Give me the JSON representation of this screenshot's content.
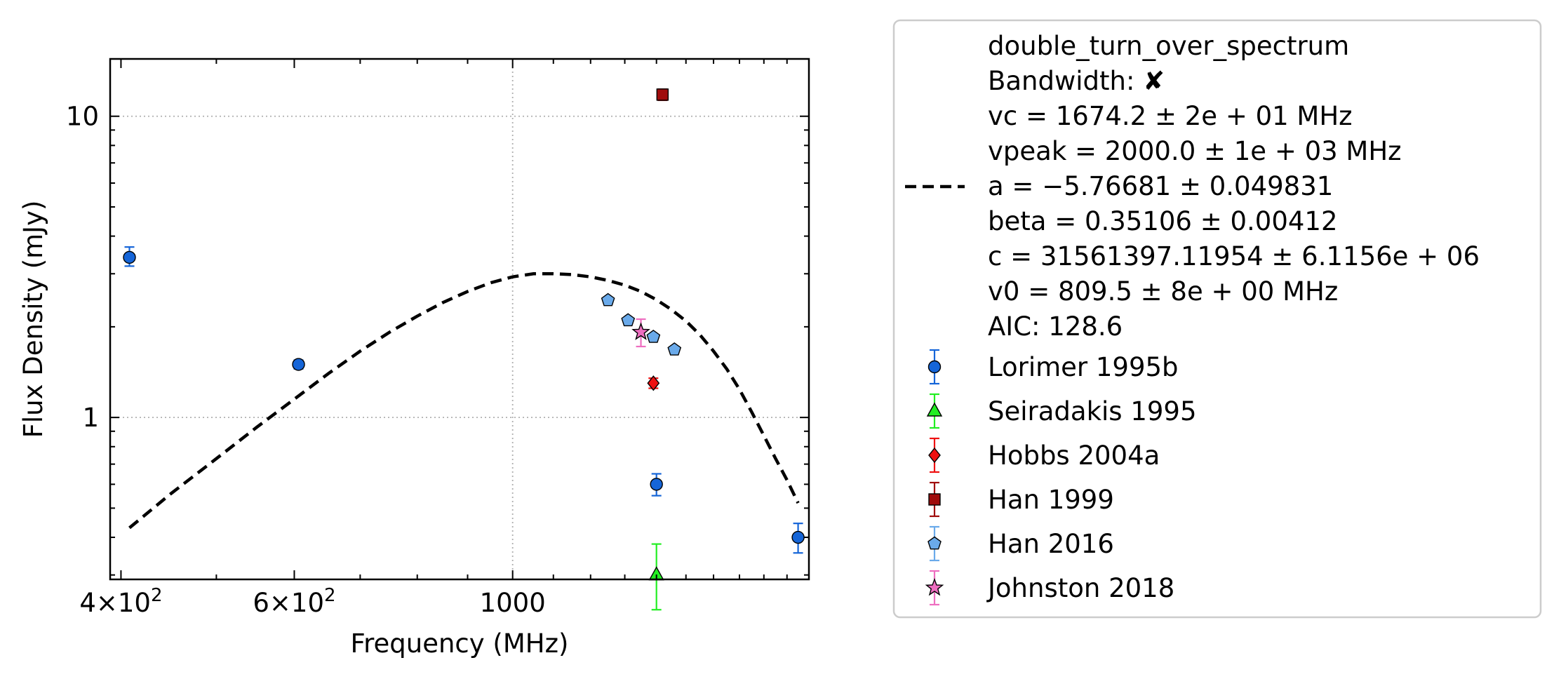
{
  "chart_data": {
    "type": "scatter",
    "title": "",
    "xlabel": "Frequency (MHz)",
    "ylabel": "Flux Density (mJy)",
    "x_scale": "log",
    "y_scale": "log",
    "xlim": [
      390,
      2000
    ],
    "ylim": [
      0.29,
      15.5
    ],
    "grid": true,
    "legend_position": "outside-right",
    "x_ticks": [
      {
        "value": 400,
        "base": "4",
        "exp": "2"
      },
      {
        "value": 600,
        "base": "6",
        "exp": "2"
      },
      {
        "value": 1000,
        "label": "1000"
      }
    ],
    "y_ticks": [
      {
        "value": 1,
        "label": "1"
      },
      {
        "value": 10,
        "label": "10"
      }
    ],
    "fit": {
      "name": "double_turn_over_spectrum",
      "color": "#000000",
      "x_range": [
        408,
        1950
      ],
      "x": [
        408,
        450,
        500,
        550,
        600,
        650,
        700,
        750,
        800,
        850,
        900,
        950,
        1000,
        1050,
        1100,
        1150,
        1200,
        1250,
        1300,
        1350,
        1400,
        1450,
        1500,
        1550,
        1600,
        1650,
        1700,
        1750,
        1800,
        1850,
        1900,
        1950
      ],
      "y": [
        0.43,
        0.56,
        0.73,
        0.93,
        1.15,
        1.4,
        1.66,
        1.92,
        2.17,
        2.41,
        2.62,
        2.8,
        2.93,
        3.0,
        3.0,
        2.98,
        2.93,
        2.85,
        2.75,
        2.62,
        2.46,
        2.28,
        2.09,
        1.88,
        1.66,
        1.45,
        1.24,
        1.04,
        0.87,
        0.73,
        0.62,
        0.52
      ]
    },
    "fit_legend_lines": [
      "double_turn_over_spectrum",
      "Bandwidth: ✘",
      "vc = 1674.2 ± 2e + 01 MHz",
      "vpeak = 2000.0 ± 1e + 03 MHz",
      "a = −5.76681 ± 0.049831",
      "beta = 0.35106 ± 0.00412",
      "c = 31561397.11954 ± 6.1156e + 06",
      "v0 = 809.5 ± 8e + 00 MHz",
      "AIC: 128.6"
    ],
    "series": [
      {
        "name": "Lorimer 1995b",
        "marker": "circle",
        "color": "#1565d8",
        "err_color": "#1565d8",
        "points": [
          {
            "x": 408,
            "y": 3.4,
            "yerr": [
              0.22,
              0.28
            ]
          },
          {
            "x": 606,
            "y": 1.5,
            "yerr": [
              0.05,
              0.05
            ]
          },
          {
            "x": 1400,
            "y": 0.6,
            "yerr": [
              0.05,
              0.05
            ]
          },
          {
            "x": 1950,
            "y": 0.4,
            "yerr": [
              0.045,
              0.045
            ]
          }
        ]
      },
      {
        "name": "Seiradakis 1995",
        "marker": "triangle",
        "color": "#22ee22",
        "err_color": "#22ee22",
        "points": [
          {
            "x": 1400,
            "y": 0.3,
            "yerr": [
              0.07,
              0.08
            ]
          }
        ]
      },
      {
        "name": "Hobbs 2004a",
        "marker": "diamond",
        "color": "#ee1111",
        "err_color": "#ee1111",
        "points": [
          {
            "x": 1390,
            "y": 1.3,
            "yerr": [
              0.05,
              0.05
            ]
          }
        ]
      },
      {
        "name": "Han 1999",
        "marker": "square",
        "color": "#a00c0c",
        "err_color": "#a00c0c",
        "points": [
          {
            "x": 1420,
            "y": 11.8,
            "yerr": [
              0.5,
              0.5
            ]
          }
        ]
      },
      {
        "name": "Han 2016",
        "marker": "pentagon",
        "color": "#6aaaea",
        "err_color": "#6aaaea",
        "points": [
          {
            "x": 1250,
            "y": 2.45,
            "yerr": [
              0,
              0
            ]
          },
          {
            "x": 1310,
            "y": 2.1,
            "yerr": [
              0,
              0
            ]
          },
          {
            "x": 1390,
            "y": 1.85,
            "yerr": [
              0,
              0
            ]
          },
          {
            "x": 1460,
            "y": 1.68,
            "yerr": [
              0,
              0
            ]
          }
        ]
      },
      {
        "name": "Johnston 2018",
        "marker": "star",
        "color": "#ee6ec0",
        "err_color": "#ee6ec0",
        "points": [
          {
            "x": 1350,
            "y": 1.92,
            "yerr": [
              0.2,
              0.2
            ]
          }
        ]
      }
    ]
  }
}
